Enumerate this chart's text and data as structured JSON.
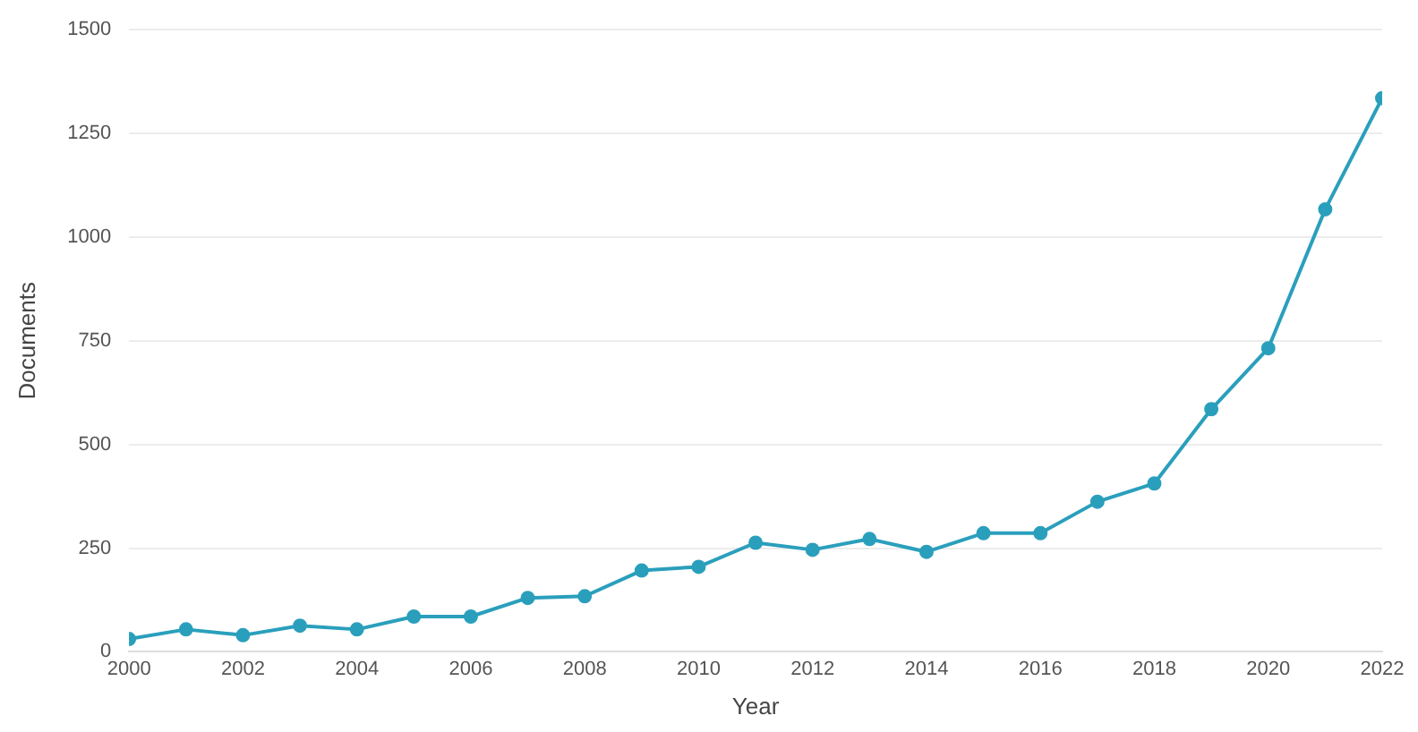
{
  "chart_data": {
    "type": "line",
    "xlabel": "Year",
    "ylabel": "Documents",
    "x": [
      2000,
      2001,
      2002,
      2003,
      2004,
      2005,
      2006,
      2007,
      2008,
      2009,
      2010,
      2011,
      2012,
      2013,
      2014,
      2015,
      2016,
      2017,
      2018,
      2019,
      2020,
      2021,
      2022
    ],
    "series": [
      {
        "color": "#2a9fbc",
        "values": [
          31,
          54,
          40,
          63,
          54,
          85,
          85,
          130,
          134,
          196,
          205,
          263,
          246,
          272,
          241,
          286,
          286,
          362,
          406,
          585,
          732,
          1067,
          1335
        ]
      }
    ],
    "xlim": [
      2000,
      2022
    ],
    "xticks": [
      2000,
      2002,
      2004,
      2006,
      2008,
      2010,
      2012,
      2014,
      2016,
      2018,
      2020,
      2022
    ],
    "ylim": [
      0,
      1500
    ],
    "yticks": [
      0,
      250,
      500,
      750,
      1000,
      1250,
      1500
    ],
    "grid": "y",
    "legend": false,
    "marker": "circle",
    "line_style": "solid"
  }
}
